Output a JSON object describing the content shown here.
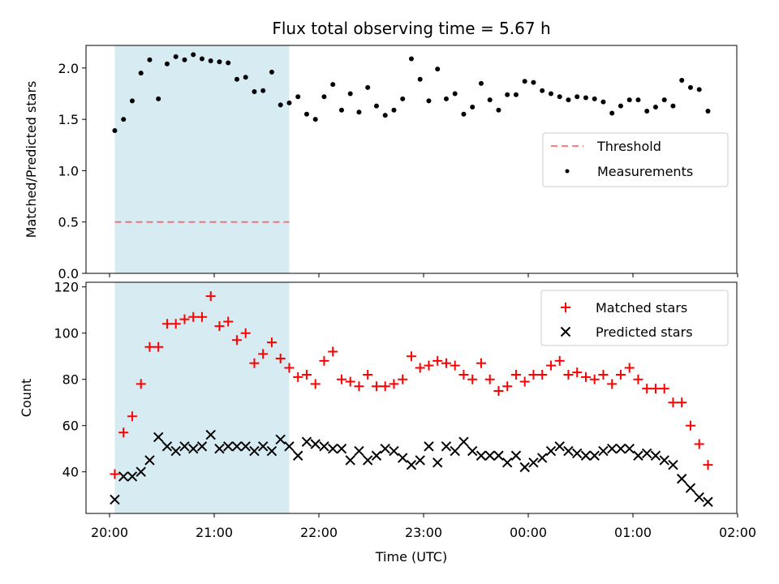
{
  "title": "Flux total observing time = 5.67 h",
  "colors": {
    "span": "#add8e6",
    "threshold": "#ff0000",
    "measurement": "#000000",
    "matched": "#ff0000",
    "predicted": "#000000"
  },
  "chart_data": [
    {
      "type": "scatter",
      "panel": "top",
      "ylabel": "Matched/Predicted stars",
      "ylim": [
        0.0,
        2.22
      ],
      "yticks": [
        "0.0",
        "0.5",
        "1.0",
        "1.5",
        "2.0"
      ],
      "ytick_values": [
        0.0,
        0.5,
        1.0,
        1.5,
        2.0
      ],
      "legend_position": "center-right",
      "observing_span": [
        "20:03",
        "21:43"
      ],
      "threshold": {
        "name": "Threshold",
        "value": 0.5
      },
      "series": [
        {
          "name": "Measurements",
          "x": [
            "20:03",
            "20:08",
            "20:13",
            "20:18",
            "20:23",
            "20:28",
            "20:33",
            "20:38",
            "20:43",
            "20:48",
            "20:53",
            "20:58",
            "21:03",
            "21:08",
            "21:13",
            "21:18",
            "21:23",
            "21:28",
            "21:33",
            "21:38",
            "21:43",
            "21:48",
            "21:53",
            "21:58",
            "22:03",
            "22:08",
            "22:13",
            "22:18",
            "22:23",
            "22:28",
            "22:33",
            "22:38",
            "22:43",
            "22:48",
            "22:53",
            "22:58",
            "23:03",
            "23:08",
            "23:13",
            "23:18",
            "23:23",
            "23:28",
            "23:33",
            "23:38",
            "23:43",
            "23:48",
            "23:53",
            "23:58",
            "00:03",
            "00:08",
            "00:13",
            "00:18",
            "00:23",
            "00:28",
            "00:33",
            "00:38",
            "00:43",
            "00:48",
            "00:53",
            "00:58",
            "01:03",
            "01:08",
            "01:13",
            "01:18",
            "01:23",
            "01:28",
            "01:33",
            "01:38",
            "01:43"
          ],
          "values": [
            1.39,
            1.5,
            1.68,
            1.95,
            2.08,
            1.7,
            2.04,
            2.11,
            2.08,
            2.13,
            2.09,
            2.07,
            2.06,
            2.05,
            1.89,
            1.91,
            1.77,
            1.78,
            1.96,
            1.64,
            1.66,
            1.72,
            1.55,
            1.5,
            1.72,
            1.84,
            1.59,
            1.75,
            1.57,
            1.81,
            1.63,
            1.54,
            1.59,
            1.7,
            2.09,
            1.89,
            1.68,
            1.99,
            1.7,
            1.75,
            1.55,
            1.62,
            1.85,
            1.69,
            1.59,
            1.74,
            1.74,
            1.87,
            1.86,
            1.78,
            1.75,
            1.72,
            1.69,
            1.72,
            1.71,
            1.7,
            1.67,
            1.56,
            1.63,
            1.69,
            1.69,
            1.58,
            1.62,
            1.69,
            1.63,
            1.88,
            1.81,
            1.79,
            1.58
          ]
        }
      ]
    },
    {
      "type": "scatter",
      "panel": "bottom",
      "ylabel": "Count",
      "xlabel": "Time (UTC)",
      "ylim": [
        22,
        122
      ],
      "yticks": [
        "40",
        "60",
        "80",
        "100",
        "120"
      ],
      "ytick_values": [
        40,
        60,
        80,
        100,
        120
      ],
      "xticks": [
        "20:00",
        "21:00",
        "22:00",
        "23:00",
        "00:00",
        "01:00",
        "02:00"
      ],
      "legend_position": "top-right",
      "series": [
        {
          "name": "Matched stars",
          "x": [
            "20:03",
            "20:08",
            "20:13",
            "20:18",
            "20:23",
            "20:28",
            "20:33",
            "20:38",
            "20:43",
            "20:48",
            "20:53",
            "20:58",
            "21:03",
            "21:08",
            "21:13",
            "21:18",
            "21:23",
            "21:28",
            "21:33",
            "21:38",
            "21:43",
            "21:48",
            "21:53",
            "21:58",
            "22:03",
            "22:08",
            "22:13",
            "22:18",
            "22:23",
            "22:28",
            "22:33",
            "22:38",
            "22:43",
            "22:48",
            "22:53",
            "22:58",
            "23:03",
            "23:08",
            "23:13",
            "23:18",
            "23:23",
            "23:28",
            "23:33",
            "23:38",
            "23:43",
            "23:48",
            "23:53",
            "23:58",
            "00:03",
            "00:08",
            "00:13",
            "00:18",
            "00:23",
            "00:28",
            "00:33",
            "00:38",
            "00:43",
            "00:48",
            "00:53",
            "00:58",
            "01:03",
            "01:08",
            "01:13",
            "01:18",
            "01:23",
            "01:28",
            "01:33",
            "01:38",
            "01:43"
          ],
          "values": [
            39,
            57,
            64,
            78,
            94,
            94,
            104,
            104,
            106,
            107,
            107,
            116,
            103,
            105,
            97,
            100,
            87,
            91,
            96,
            89,
            85,
            81,
            82,
            78,
            88,
            92,
            80,
            79,
            77,
            82,
            77,
            77,
            78,
            80,
            90,
            85,
            86,
            88,
            87,
            86,
            82,
            80,
            87,
            80,
            75,
            77,
            82,
            79,
            82,
            82,
            86,
            88,
            82,
            83,
            81,
            80,
            82,
            78,
            82,
            85,
            80,
            76,
            76,
            76,
            70,
            70,
            60,
            52,
            43
          ]
        },
        {
          "name": "Predicted stars",
          "x": [
            "20:03",
            "20:08",
            "20:13",
            "20:18",
            "20:23",
            "20:28",
            "20:33",
            "20:38",
            "20:43",
            "20:48",
            "20:53",
            "20:58",
            "21:03",
            "21:08",
            "21:13",
            "21:18",
            "21:23",
            "21:28",
            "21:33",
            "21:38",
            "21:43",
            "21:48",
            "21:53",
            "21:58",
            "22:03",
            "22:08",
            "22:13",
            "22:18",
            "22:23",
            "22:28",
            "22:33",
            "22:38",
            "22:43",
            "22:48",
            "22:53",
            "22:58",
            "23:03",
            "23:08",
            "23:13",
            "23:18",
            "23:23",
            "23:28",
            "23:33",
            "23:38",
            "23:43",
            "23:48",
            "23:53",
            "23:58",
            "00:03",
            "00:08",
            "00:13",
            "00:18",
            "00:23",
            "00:28",
            "00:33",
            "00:38",
            "00:43",
            "00:48",
            "00:53",
            "00:58",
            "01:03",
            "01:08",
            "01:13",
            "01:18",
            "01:23",
            "01:28",
            "01:33",
            "01:38",
            "01:43"
          ],
          "values": [
            28,
            38,
            38,
            40,
            45,
            55,
            51,
            49,
            51,
            50,
            51,
            56,
            50,
            51,
            51,
            51,
            49,
            51,
            49,
            54,
            51,
            47,
            53,
            52,
            51,
            50,
            50,
            45,
            49,
            45,
            47,
            50,
            49,
            46,
            43,
            45,
            51,
            44,
            51,
            49,
            53,
            49,
            47,
            47,
            47,
            44,
            47,
            42,
            44,
            46,
            49,
            51,
            49,
            48,
            47,
            47,
            49,
            50,
            50,
            50,
            47,
            48,
            47,
            45,
            43,
            37,
            33,
            29,
            27
          ]
        }
      ]
    }
  ]
}
